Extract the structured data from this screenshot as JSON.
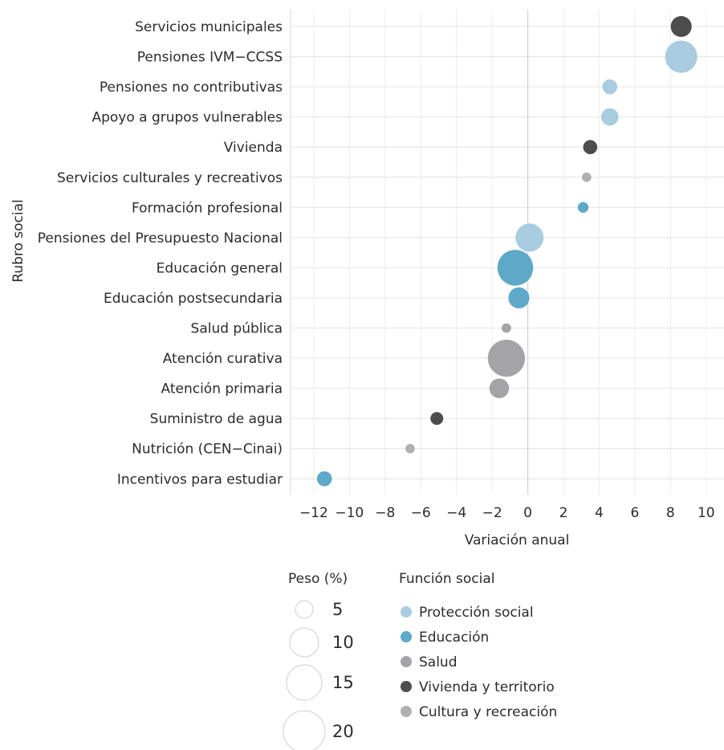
{
  "chart_data": {
    "type": "scatter",
    "xlabel": "Variación anual",
    "ylabel": "Rubro social",
    "xlim": [
      -13.3,
      11
    ],
    "xticks": [
      -12,
      -10,
      -8,
      -6,
      -4,
      -2,
      0,
      2,
      4,
      6,
      8,
      10
    ],
    "xtick_labels": [
      "−12",
      "−10",
      "−8",
      "−6",
      "−4",
      "−2",
      "0",
      "2",
      "4",
      "6",
      "8",
      "10"
    ],
    "grid": true,
    "legend_placement": "bottom",
    "categories": [
      "Servicios municipales",
      "Pensiones IVM−CCSS",
      "Pensiones no contributivas",
      "Apoyo a grupos vulnerables",
      "Vivienda",
      "Servicios culturales y recreativos",
      "Formación profesional",
      "Pensiones del Presupuesto Nacional",
      "Educación general",
      "Educación postsecundaria",
      "Salud pública",
      "Atención curativa",
      "Atención primaria",
      "Suministro de agua",
      "Nutrición (CEN−Cinai)",
      "Incentivos para estudiar"
    ],
    "points": [
      {
        "category": "Servicios municipales",
        "x": 8.6,
        "weight": 3.5,
        "group": "Vivienda y territorio"
      },
      {
        "category": "Pensiones IVM−CCSS",
        "x": 8.6,
        "weight": 9.5,
        "group": "Protección social"
      },
      {
        "category": "Pensiones no contributivas",
        "x": 4.6,
        "weight": 1.5,
        "group": "Protección social"
      },
      {
        "category": "Apoyo a grupos vulnerables",
        "x": 4.6,
        "weight": 2.2,
        "group": "Protección social"
      },
      {
        "category": "Vivienda",
        "x": 3.5,
        "weight": 1.3,
        "group": "Vivienda y territorio"
      },
      {
        "category": "Servicios culturales y recreativos",
        "x": 3.3,
        "weight": 0.4,
        "group": "Cultura y recreación"
      },
      {
        "category": "Formación profesional",
        "x": 3.1,
        "weight": 0.6,
        "group": "Educación"
      },
      {
        "category": "Pensiones del Presupuesto Nacional",
        "x": 0.1,
        "weight": 7.0,
        "group": "Protección social"
      },
      {
        "category": "Educación general",
        "x": -0.7,
        "weight": 12.0,
        "group": "Educación"
      },
      {
        "category": "Educación postsecundaria",
        "x": -0.5,
        "weight": 3.5,
        "group": "Educación"
      },
      {
        "category": "Salud pública",
        "x": -1.2,
        "weight": 0.4,
        "group": "Salud"
      },
      {
        "category": "Atención curativa",
        "x": -1.2,
        "weight": 13.0,
        "group": "Salud"
      },
      {
        "category": "Atención primaria",
        "x": -1.6,
        "weight": 3.0,
        "group": "Salud"
      },
      {
        "category": "Suministro de agua",
        "x": -5.1,
        "weight": 1.0,
        "group": "Vivienda y territorio"
      },
      {
        "category": "Nutrición (CEN−Cinai)",
        "x": -6.6,
        "weight": 0.4,
        "group": "Cultura y recreación"
      },
      {
        "category": "Incentivos para estudiar",
        "x": -11.4,
        "weight": 1.5,
        "group": "Educación"
      }
    ],
    "size_legend": {
      "title": "Peso (%)",
      "values": [
        5,
        10,
        15,
        20
      ]
    },
    "color_legend": {
      "title": "Función social",
      "groups": [
        {
          "name": "Protección social",
          "color": "#a9cce0"
        },
        {
          "name": "Educación",
          "color": "#5ea8c8"
        },
        {
          "name": "Salud",
          "color": "#a4a4a8"
        },
        {
          "name": "Vivienda y territorio",
          "color": "#4d4d4d"
        },
        {
          "name": "Cultura y recreación",
          "color": "#b0b0b0"
        }
      ]
    }
  }
}
